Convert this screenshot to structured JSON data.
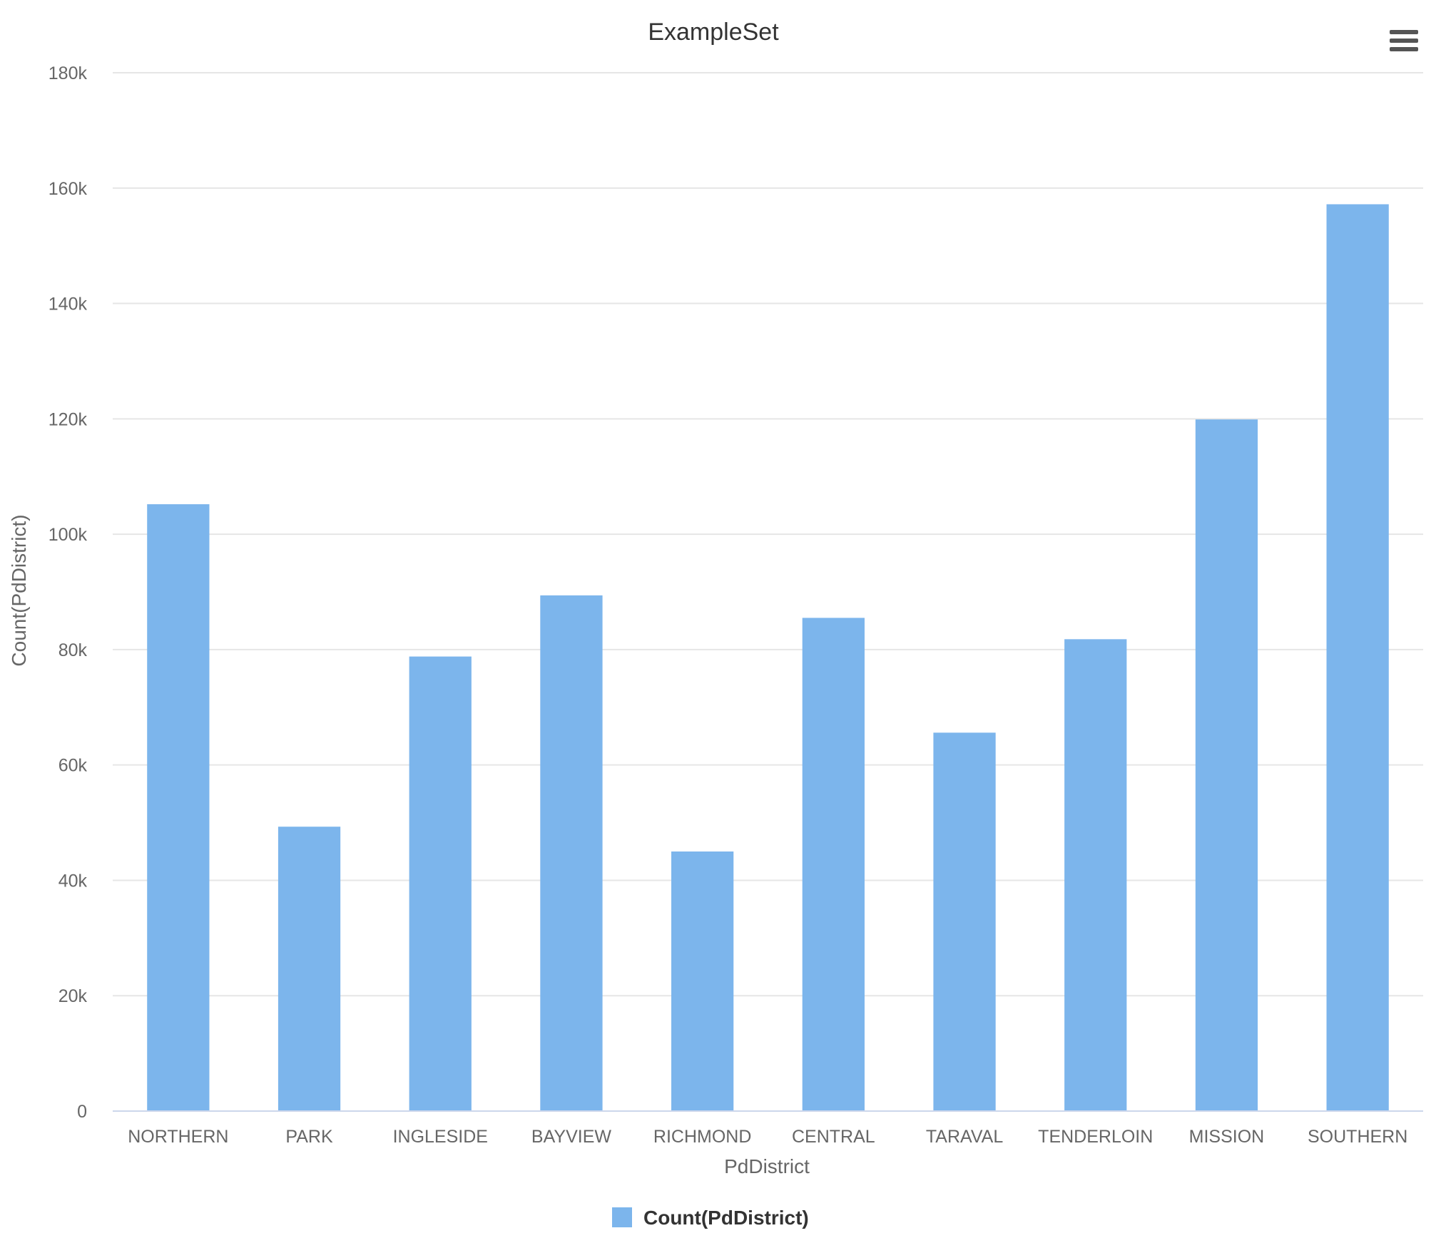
{
  "chart_data": {
    "type": "bar",
    "title": "ExampleSet",
    "xlabel": "PdDistrict",
    "ylabel": "Count(PdDistrict)",
    "categories": [
      "NORTHERN",
      "PARK",
      "INGLESIDE",
      "BAYVIEW",
      "RICHMOND",
      "CENTRAL",
      "TARAVAL",
      "TENDERLOIN",
      "MISSION",
      "SOUTHERN"
    ],
    "series": [
      {
        "name": "Count(PdDistrict)",
        "color": "#7cb5ec",
        "values": [
          105200,
          49300,
          78800,
          89400,
          45000,
          85500,
          65600,
          81800,
          119900,
          157200
        ]
      }
    ],
    "ylim": [
      0,
      180000
    ],
    "yticks": [
      0,
      20000,
      40000,
      60000,
      80000,
      100000,
      120000,
      140000,
      160000,
      180000
    ],
    "ytick_labels": [
      "0",
      "20k",
      "40k",
      "60k",
      "80k",
      "100k",
      "120k",
      "140k",
      "160k",
      "180k"
    ],
    "grid": true,
    "legend": "bottom-center"
  },
  "toolbar": {
    "menu_icon": "hamburger-menu-icon"
  }
}
